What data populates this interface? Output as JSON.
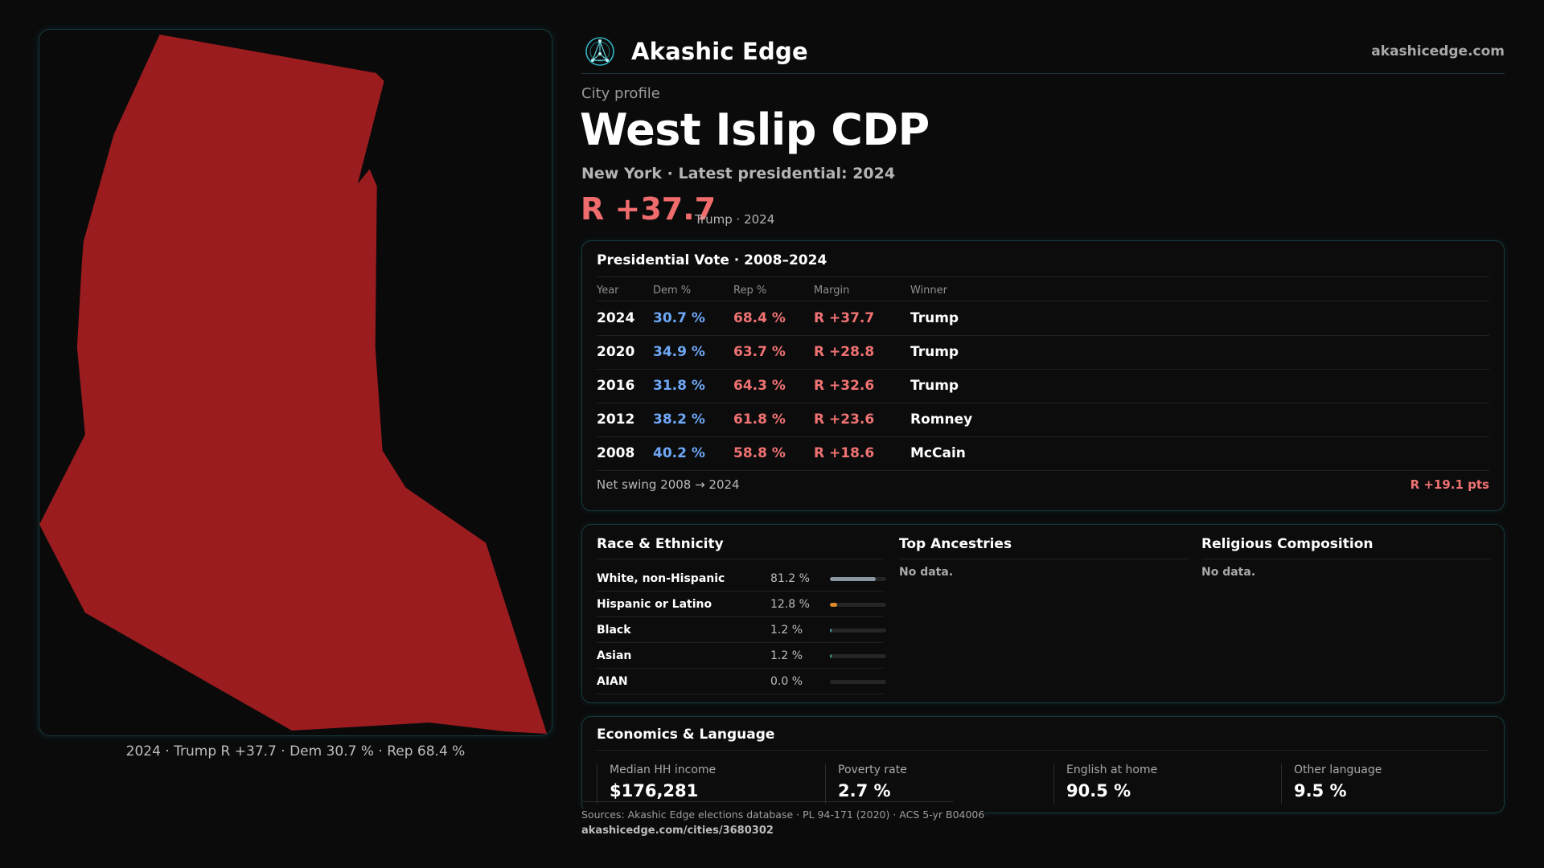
{
  "map": {
    "caption": "2024 · Trump R +37.7 · Dem 30.7 % · Rep 68.4 %",
    "fill_color": "#9b1c1f"
  },
  "header": {
    "brand": "Akashic Edge",
    "domain": "akashicedge.com",
    "logo_icon": "network-globe-icon"
  },
  "profile": {
    "eyebrow": "City profile",
    "title": "West Islip CDP",
    "subtitle": "New York · Latest presidential: 2024",
    "margin": "R +37.7",
    "margin_note": "Trump · 2024"
  },
  "vote": {
    "title": "Presidential Vote · 2008–2024",
    "headers": {
      "year": "Year",
      "dem": "Dem %",
      "rep": "Rep %",
      "margin": "Margin",
      "winner": "Winner"
    },
    "rows": [
      {
        "year": "2024",
        "dem": "30.7 %",
        "rep": "68.4 %",
        "margin": "R +37.7",
        "winner": "Trump"
      },
      {
        "year": "2020",
        "dem": "34.9 %",
        "rep": "63.7 %",
        "margin": "R +28.8",
        "winner": "Trump"
      },
      {
        "year": "2016",
        "dem": "31.8 %",
        "rep": "64.3 %",
        "margin": "R +32.6",
        "winner": "Trump"
      },
      {
        "year": "2012",
        "dem": "38.2 %",
        "rep": "61.8 %",
        "margin": "R +23.6",
        "winner": "Romney"
      },
      {
        "year": "2008",
        "dem": "40.2 %",
        "rep": "58.8 %",
        "margin": "R +18.6",
        "winner": "McCain"
      }
    ],
    "net_swing_label": "Net swing 2008 → 2024",
    "net_swing_value": "R +19.1 pts"
  },
  "demographics": {
    "race_title": "Race & Ethnicity",
    "race": [
      {
        "label": "White, non-Hispanic",
        "pct": "81.2 %",
        "value": 81.2,
        "color": "#8b96a3"
      },
      {
        "label": "Hispanic or Latino",
        "pct": "12.8 %",
        "value": 12.8,
        "color": "#e08a2e"
      },
      {
        "label": "Black",
        "pct": "1.2 %",
        "value": 1.2,
        "color": "#3fa79a"
      },
      {
        "label": "Asian",
        "pct": "1.2 %",
        "value": 1.2,
        "color": "#3fa79a"
      },
      {
        "label": "AIAN",
        "pct": "0.0 %",
        "value": 0.0,
        "color": "#3fa79a"
      }
    ],
    "ancestry_title": "Top Ancestries",
    "ancestry_empty": "No data.",
    "religion_title": "Religious Composition",
    "religion_empty": "No data."
  },
  "economics": {
    "title": "Economics & Language",
    "stats": [
      {
        "label": "Median HH income",
        "value": "$176,281"
      },
      {
        "label": "Poverty rate",
        "value": "2.7 %"
      },
      {
        "label": "English at home",
        "value": "90.5 %"
      },
      {
        "label": "Other language",
        "value": "9.5 %"
      }
    ]
  },
  "footer": {
    "sources": "Sources: Akashic Edge elections database · PL 94-171 (2020) · ACS 5-yr B04006",
    "url": "akashicedge.com/cities/3680302"
  }
}
